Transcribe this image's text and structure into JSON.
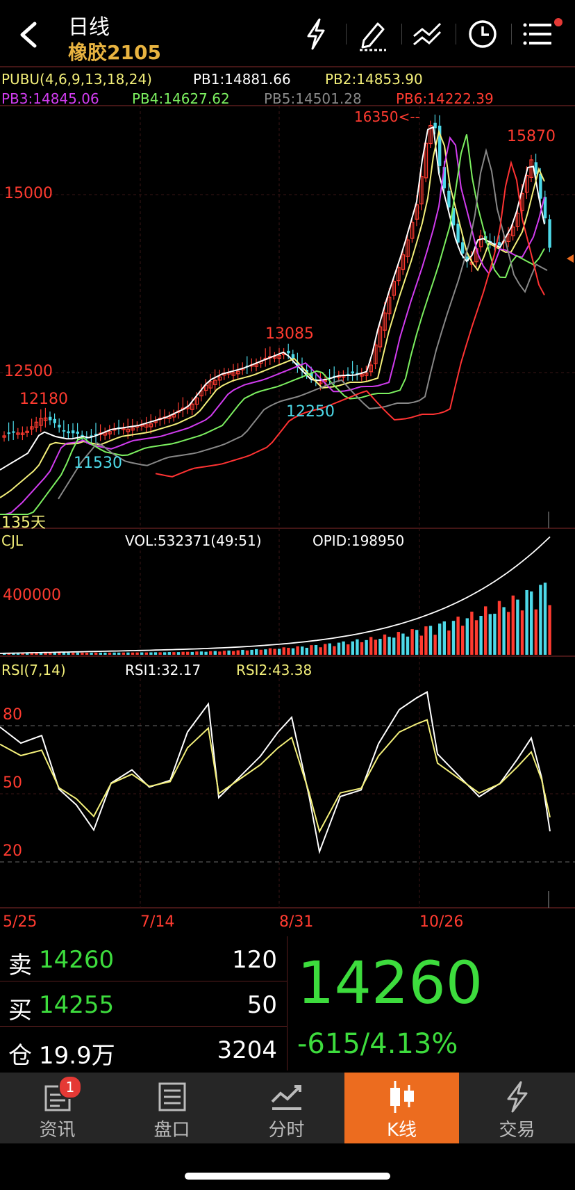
{
  "header": {
    "period": "日线",
    "contract": "橡胶2105",
    "icons": [
      "back-arrow-icon",
      "lightning-icon",
      "drawing-pen-icon",
      "line-tool-icon",
      "clock-icon",
      "menu-icon"
    ]
  },
  "kline": {
    "pubu_label": "PUBU(4,6,9,13,18,24)",
    "pb1": "PB1:14881.66",
    "pb2": "PB2:14853.90",
    "pb3": "PB3:14845.06",
    "pb4": "PB4:14627.62",
    "pb5": "PB5:14501.28",
    "pb6": "PB6:14222.39",
    "price_ticks": [
      "15000",
      "12500"
    ],
    "annotations": {
      "high_label": "16350<--",
      "right_high": "15870",
      "mid_high": "13085",
      "left_high": "12180",
      "left_low": "11530",
      "mid_low": "12250",
      "days": "135天"
    }
  },
  "volume": {
    "label": "CJL",
    "vol": "VOL:532371(49:51)",
    "opid": "OPID:198950",
    "tick": "400000"
  },
  "rsi": {
    "label": "RSI(7,14)",
    "rsi1": "RSI1:32.17",
    "rsi2": "RSI2:43.38",
    "ticks": [
      "80",
      "50",
      "20"
    ]
  },
  "dates": [
    "5/25",
    "7/14",
    "8/31",
    "10/26"
  ],
  "quote": {
    "sell_label": "卖",
    "sell_price": "14260",
    "sell_qty": "120",
    "buy_label": "买",
    "buy_price": "14255",
    "buy_qty": "50",
    "oi_label": "仓",
    "oi_value": "19.9万",
    "oi_change": "3204",
    "last_price": "14260",
    "change": "-615/4.13%"
  },
  "tabs": [
    {
      "label": "资讯",
      "icon": "news-icon",
      "badge": "1"
    },
    {
      "label": "盘口",
      "icon": "order-book-icon"
    },
    {
      "label": "分时",
      "icon": "intraday-chart-icon"
    },
    {
      "label": "K线",
      "icon": "candlestick-icon",
      "active": true
    },
    {
      "label": "交易",
      "icon": "trade-lightning-icon"
    }
  ],
  "colors": {
    "up": "#ff3b30",
    "down": "#4dd9e8",
    "accent": "#ec6c1f",
    "price_green": "#3ddc3d",
    "pb1": "#ffffff",
    "pb2": "#f4f07a",
    "pb3": "#d23cf0",
    "pb4": "#7cf060",
    "pb5": "#888888",
    "pb6": "#ff3333"
  }
}
